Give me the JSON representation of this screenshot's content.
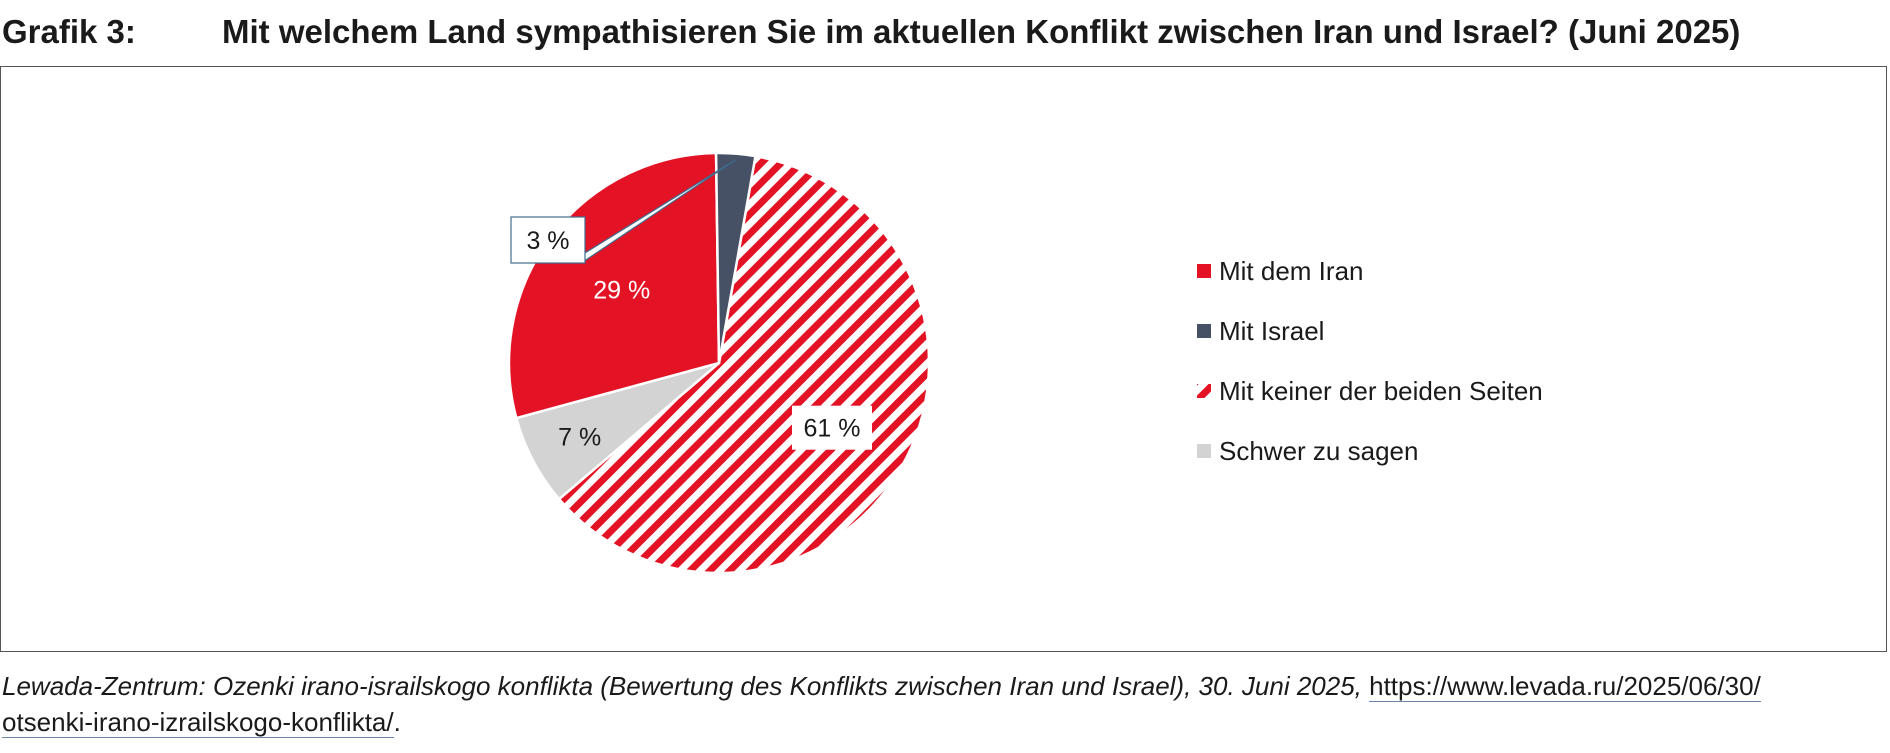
{
  "header": {
    "label": "Grafik 3:",
    "title": "Mit welchem Land sympathisieren Sie im aktuellen Konflikt zwischen Iran und Israel? (Juni 2025)"
  },
  "source": {
    "text": "Lewada-Zentrum: Ozenki irano-israilskogo konflikta (Bewertung des Konflikts zwischen Iran und Israel), 30. Juni 2025, ",
    "link_line1": "https://www.levada.ru/2025/06/30/",
    "link_line2": "otsenki-irano-izrailskogo-konflikta/",
    "end": "."
  },
  "chart_data": {
    "type": "pie",
    "title": "",
    "legend_position": "right",
    "slices": [
      {
        "label": "Mit dem Iran",
        "value": 29,
        "display": "29 %",
        "color": "#e31325",
        "pattern": "solid"
      },
      {
        "label": "Mit Israel",
        "value": 3,
        "display": "3 %",
        "color": "#465166",
        "pattern": "solid"
      },
      {
        "label": "Mit keiner der beiden Seiten",
        "value": 61,
        "display": "61 %",
        "color": "#e31325",
        "pattern": "diagonal-stripes"
      },
      {
        "label": "Schwer zu sagen",
        "value": 7,
        "display": "7 %",
        "color": "#d3d3d3",
        "pattern": "solid"
      }
    ]
  }
}
